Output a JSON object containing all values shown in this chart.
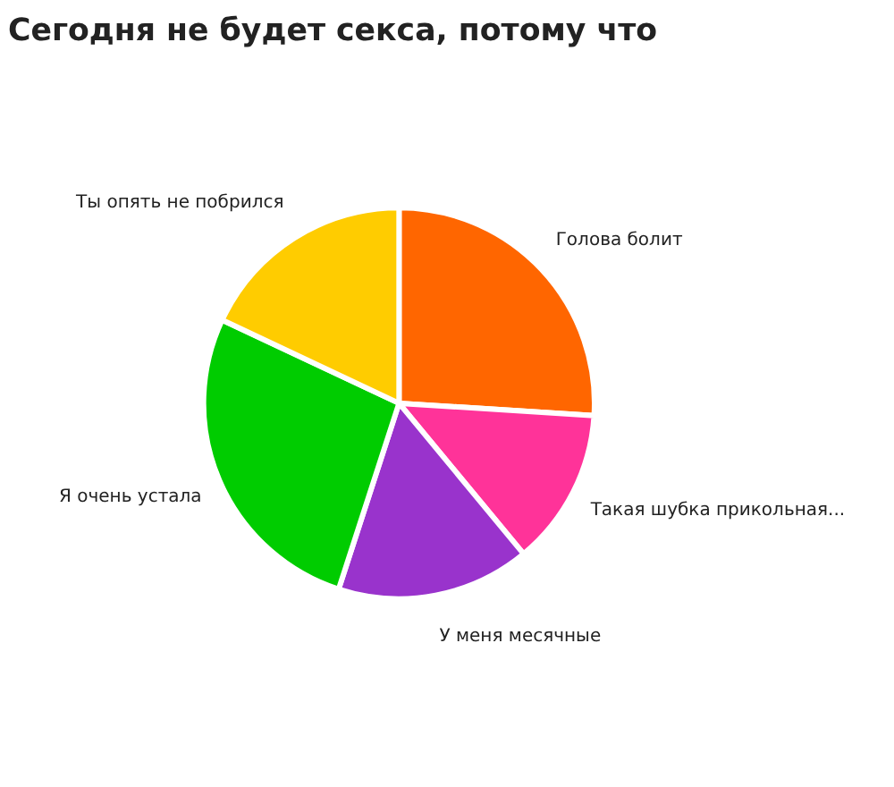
{
  "chart_data": {
    "type": "pie",
    "title": "Сегодня не будет секса, потому что",
    "categories": [
      "Голова болит",
      "Такая шубка прикольная...",
      "У меня месячные",
      "Я очень устала",
      "Ты опять не побрился"
    ],
    "values": [
      26,
      13,
      16,
      27,
      18
    ],
    "colors": [
      "#ff6600",
      "#ff3399",
      "#9933cc",
      "#00cc00",
      "#ffcc00"
    ],
    "legend": false
  }
}
